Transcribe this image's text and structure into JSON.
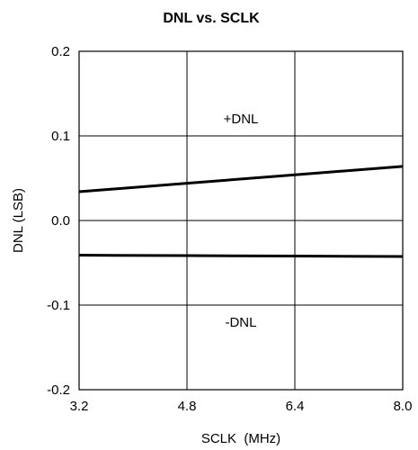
{
  "chart_data": {
    "type": "line",
    "title": "DNL vs. SCLK",
    "xlabel": "SCLK  (MHz)",
    "ylabel": "DNL (LSB)",
    "xlim": [
      3.2,
      8.0
    ],
    "ylim": [
      -0.2,
      0.2
    ],
    "x_ticks": [
      3.2,
      4.8,
      6.4,
      8.0
    ],
    "x_tick_labels": [
      "3.2",
      "4.8",
      "6.4",
      "8.0"
    ],
    "y_ticks": [
      -0.2,
      -0.1,
      0.0,
      0.1,
      0.2
    ],
    "y_tick_labels": [
      "-0.2",
      "-0.1",
      "0.0",
      "0.1",
      "0.2"
    ],
    "grid": true,
    "series": [
      {
        "name": "+DNL",
        "x": [
          3.2,
          4.8,
          6.4,
          8.0
        ],
        "y": [
          0.034,
          0.044,
          0.054,
          0.064
        ]
      },
      {
        "name": "-DNL",
        "x": [
          3.2,
          4.8,
          6.4,
          8.0
        ],
        "y": [
          -0.041,
          -0.0415,
          -0.042,
          -0.0425
        ]
      }
    ],
    "annotations": [
      {
        "text": "+DNL",
        "x": 5.6,
        "y": 0.12
      },
      {
        "text": "-DNL",
        "x": 5.6,
        "y": -0.12
      }
    ]
  }
}
